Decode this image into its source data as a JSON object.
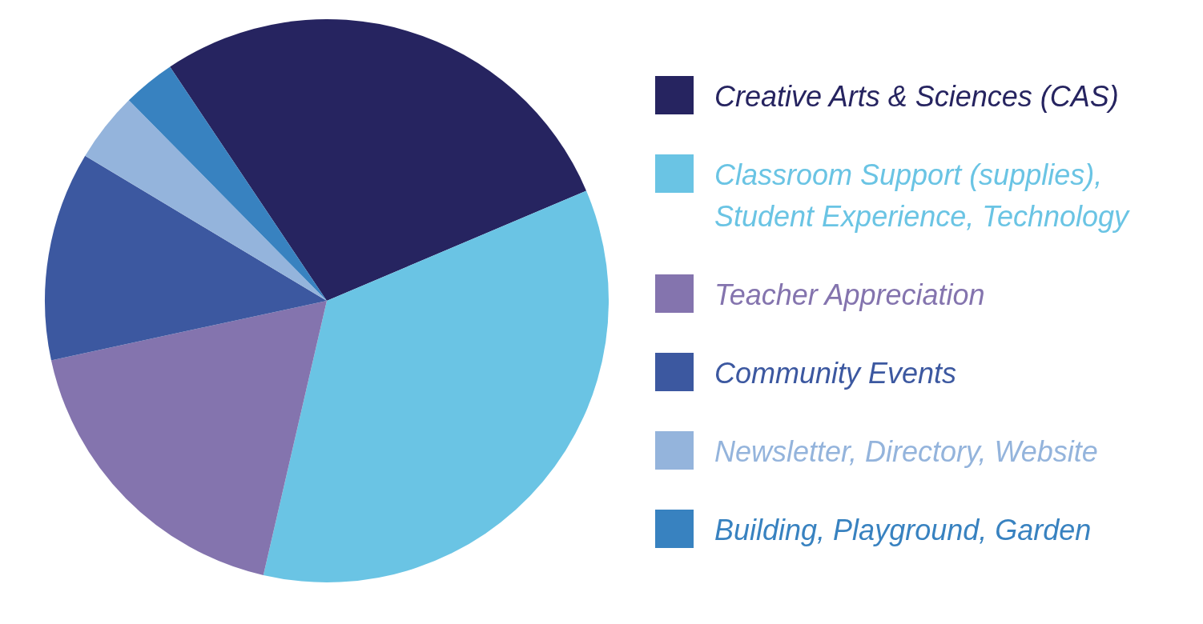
{
  "chart_data": {
    "type": "pie",
    "categories": [
      "Creative Arts & Sciences (CAS)",
      "Classroom Support (supplies), Student Experience, Technology",
      "Teacher Appreciation",
      "Community Events",
      "Newsletter, Directory, Website",
      "Building, Playground, Garden"
    ],
    "values": [
      28,
      35,
      18,
      12,
      4,
      3
    ],
    "colors": [
      "#262460",
      "#6ac4e4",
      "#8474ae",
      "#3c58a0",
      "#94b4dc",
      "#3882c0"
    ],
    "legend": "right"
  }
}
